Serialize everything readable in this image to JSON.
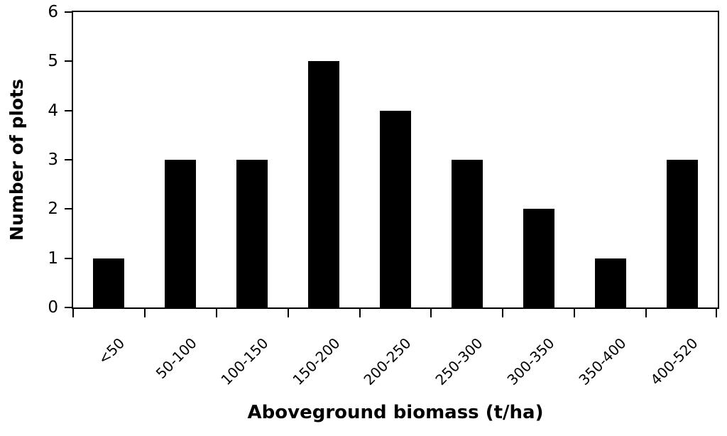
{
  "chart_data": {
    "type": "bar",
    "categories": [
      "<50",
      "50-100",
      "100-150",
      "150-200",
      "200-250",
      "250-300",
      "300-350",
      "350-400",
      "400-520"
    ],
    "values": [
      1,
      3,
      3,
      5,
      4,
      3,
      2,
      1,
      3
    ],
    "xlabel": "Aboveground biomass (t/ha)",
    "ylabel": "Number of plots",
    "ylim": [
      0,
      6
    ],
    "yticks": [
      0,
      1,
      2,
      3,
      4,
      5,
      6
    ],
    "bar_color": "#000000",
    "axis_color": "#000000",
    "background_color": "#ffffff",
    "grid": false,
    "legend": false,
    "category_label_rotation_deg": -45,
    "plot_frame": true
  }
}
